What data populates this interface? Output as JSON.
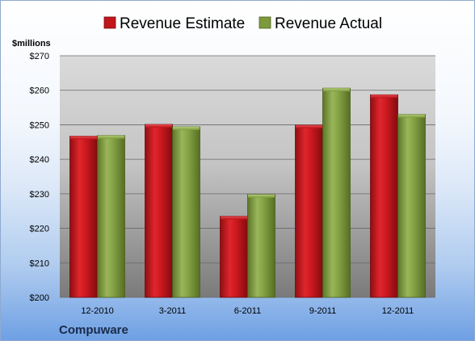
{
  "chart_data": {
    "type": "bar",
    "categories": [
      "12-2010",
      "3-2011",
      "6-2011",
      "9-2011",
      "12-2011"
    ],
    "series": [
      {
        "name": "Revenue Estimate",
        "values": [
          246.7,
          250.1,
          223.5,
          249.9,
          258.7
        ]
      },
      {
        "name": "Revenue Actual",
        "values": [
          246.9,
          249.4,
          229.8,
          260.6,
          253.0
        ]
      }
    ],
    "ylabel": "$millions",
    "ylim": [
      200,
      270
    ],
    "yticks": [
      "$200",
      "$210",
      "$220",
      "$230",
      "$240",
      "$250",
      "$260",
      "$270"
    ],
    "grid": true,
    "legend": "top",
    "colors": {
      "estimate": "#c0161c",
      "actual": "#7d9a3c"
    }
  },
  "footer": {
    "company": "Compuware"
  }
}
